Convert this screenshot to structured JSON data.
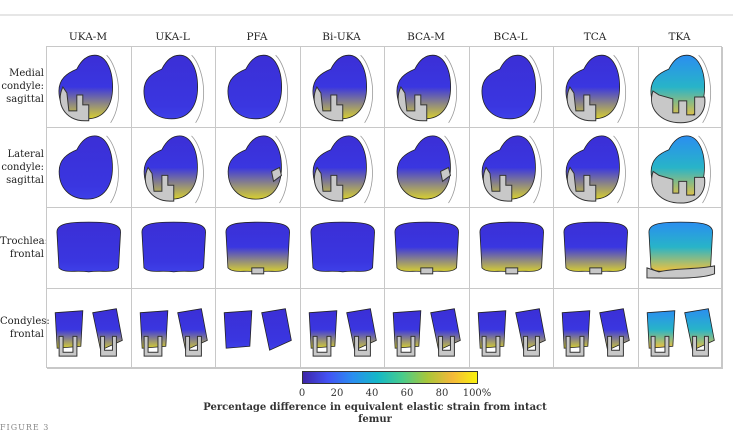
{
  "columns": [
    "UKA-M",
    "UKA-L",
    "PFA",
    "Bi-UKA",
    "BCA-M",
    "BCA-L",
    "TCA",
    "TKA"
  ],
  "rows": [
    {
      "label": [
        "Medial",
        "condyle:",
        "sagittal"
      ]
    },
    {
      "label": [
        "Lateral",
        "condyle:",
        "sagittal"
      ]
    },
    {
      "label": [
        "Trochlea:",
        "frontal"
      ]
    },
    {
      "label": [
        "Condyles:",
        "frontal"
      ]
    }
  ],
  "colorbar": {
    "ticks": [
      "0",
      "20",
      "40",
      "60",
      "80",
      "100%"
    ],
    "label": "Percentage difference in equivalent elastic strain from intact femur",
    "colors": [
      "#3e26a8",
      "#4352f4",
      "#2a8ef0",
      "#14b8c8",
      "#48cc8c",
      "#a8c63a",
      "#f4b83a",
      "#f9f20e"
    ]
  },
  "caption": "FIGURE 3"
}
